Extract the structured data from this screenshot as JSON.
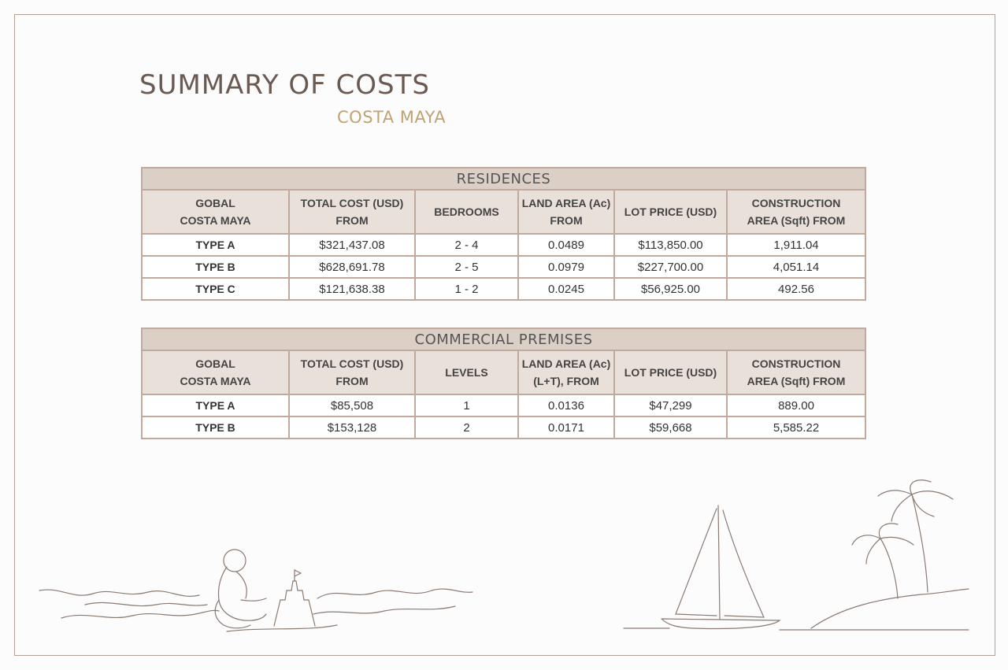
{
  "page": {
    "title": "SUMMARY OF COSTS",
    "subtitle": "COSTA MAYA"
  },
  "colors": {
    "border": "#b59e93",
    "section_header_bg": "#dccfc6",
    "column_header_bg": "#e9e0da",
    "title": "#6b5a52",
    "subtitle": "#c2a172"
  },
  "residences": {
    "section_title": "RESIDENCES",
    "columns": [
      [
        "GOBAL",
        "COSTA MAYA"
      ],
      [
        "TOTAL COST (USD)",
        "FROM"
      ],
      [
        "BEDROOMS"
      ],
      [
        "LAND AREA (Ac)",
        "FROM"
      ],
      [
        "LOT PRICE (USD)"
      ],
      [
        "CONSTRUCTION",
        "AREA (Sqft) FROM"
      ]
    ],
    "rows": [
      [
        "TYPE A",
        "$321,437.08",
        "2 - 4",
        "0.0489",
        "$113,850.00",
        "1,911.04"
      ],
      [
        "TYPE B",
        "$628,691.78",
        "2 - 5",
        "0.0979",
        "$227,700.00",
        "4,051.14"
      ],
      [
        "TYPE C",
        "$121,638.38",
        "1 - 2",
        "0.0245",
        "$56,925.00",
        "492.56"
      ]
    ]
  },
  "commercial": {
    "section_title": "COMMERCIAL PREMISES",
    "columns": [
      [
        "GOBAL",
        "COSTA MAYA"
      ],
      [
        "TOTAL COST (USD)",
        "FROM"
      ],
      [
        "LEVELS"
      ],
      [
        "LAND AREA (Ac)",
        "(L+T), FROM"
      ],
      [
        "LOT PRICE (USD)"
      ],
      [
        "CONSTRUCTION",
        "AREA (Sqft) FROM"
      ]
    ],
    "rows": [
      [
        "TYPE A",
        "$85,508",
        "1",
        "0.0136",
        "$47,299",
        "889.00"
      ],
      [
        "TYPE B",
        "$153,128",
        "2",
        "0.0171",
        "$59,668",
        "5,585.22"
      ]
    ]
  },
  "decorations": {
    "left": "child-building-sandcastle-illustration",
    "right": "sailboat-and-palm-trees-illustration"
  }
}
